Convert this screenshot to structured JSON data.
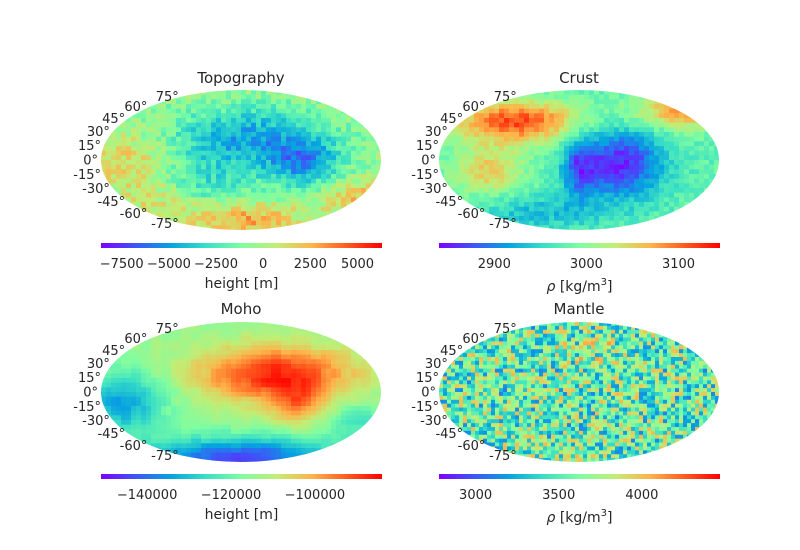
{
  "colormap_stops": [
    "#8000ff",
    "#3c56f8",
    "#06a4e0",
    "#3ae0c4",
    "#7efda2",
    "#c2ed75",
    "#fdb44a",
    "#ff5a1e",
    "#ff0000"
  ],
  "lat_labels": [
    "75°",
    "60°",
    "45°",
    "30°",
    "15°",
    "0°",
    "-15°",
    "-30°",
    "-45°",
    "-60°",
    "-75°"
  ],
  "chart_data": [
    {
      "type": "heatmap",
      "title": "Topography",
      "projection": "mollweide",
      "field": "topography",
      "colorbar": {
        "min": -8600,
        "max": 6300,
        "ticks": [
          -7500,
          -5000,
          -2500,
          0,
          2500,
          5000
        ],
        "tick_labels": [
          "−7500",
          "−5000",
          "−2500",
          "0",
          "2500",
          "5000"
        ],
        "label": "height [m]"
      }
    },
    {
      "type": "heatmap",
      "title": "Crust",
      "projection": "mollweide",
      "field": "crust",
      "colorbar": {
        "min": 2840,
        "max": 3145,
        "ticks": [
          2900,
          3000,
          3100
        ],
        "tick_labels": [
          "2900",
          "3000",
          "3100"
        ],
        "label": "ρ [kg/m3]"
      }
    },
    {
      "type": "heatmap",
      "title": "Moho",
      "projection": "mollweide",
      "field": "moho",
      "colorbar": {
        "min": -151000,
        "max": -84000,
        "ticks": [
          -140000,
          -120000,
          -100000
        ],
        "tick_labels": [
          "−140000",
          "−120000",
          "−100000"
        ],
        "label": "height [m]"
      }
    },
    {
      "type": "heatmap",
      "title": "Mantle",
      "projection": "mollweide",
      "field": "mantle",
      "colorbar": {
        "min": 2780,
        "max": 4470,
        "ticks": [
          3000,
          3500,
          4000
        ],
        "tick_labels": [
          "3000",
          "3500",
          "4000"
        ],
        "label": "ρ [kg/m3]"
      }
    }
  ]
}
